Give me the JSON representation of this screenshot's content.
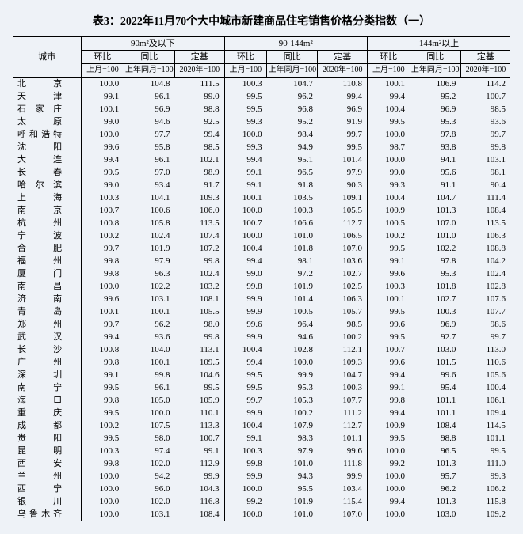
{
  "title": "表3：2022年11月70个大中城市新建商品住宅销售价格分类指数（一）",
  "groups": [
    "90m²及以下",
    "90-144m²",
    "144m²以上"
  ],
  "subcols": [
    "环比",
    "同比",
    "定基"
  ],
  "basecols": [
    "上月=100",
    "上年同月=100",
    "2020年=100"
  ],
  "city_header": "城市",
  "rows": [
    {
      "c": "北京",
      "v": [
        "100.0",
        "104.8",
        "111.5",
        "100.3",
        "104.7",
        "110.8",
        "100.1",
        "106.9",
        "114.2"
      ]
    },
    {
      "c": "天津",
      "v": [
        "99.1",
        "96.1",
        "99.0",
        "99.5",
        "96.2",
        "99.4",
        "99.4",
        "95.2",
        "100.7"
      ]
    },
    {
      "c": "石家庄",
      "v": [
        "100.1",
        "96.9",
        "98.8",
        "99.5",
        "96.8",
        "96.9",
        "100.4",
        "96.9",
        "98.5"
      ]
    },
    {
      "c": "太原",
      "v": [
        "99.0",
        "94.6",
        "92.5",
        "99.3",
        "95.2",
        "91.9",
        "99.5",
        "95.3",
        "93.6"
      ]
    },
    {
      "c": "呼和浩特",
      "v": [
        "100.0",
        "97.7",
        "99.4",
        "100.0",
        "98.4",
        "99.7",
        "100.0",
        "97.8",
        "99.7"
      ]
    },
    {
      "c": "沈阳",
      "v": [
        "99.6",
        "95.8",
        "98.5",
        "99.3",
        "94.9",
        "99.5",
        "98.7",
        "93.8",
        "99.8"
      ]
    },
    {
      "c": "大连",
      "v": [
        "99.4",
        "96.1",
        "102.1",
        "99.4",
        "95.1",
        "101.4",
        "100.0",
        "94.1",
        "103.1"
      ]
    },
    {
      "c": "长春",
      "v": [
        "99.5",
        "97.0",
        "98.9",
        "99.1",
        "96.5",
        "97.9",
        "99.0",
        "95.6",
        "98.1"
      ]
    },
    {
      "c": "哈尔滨",
      "v": [
        "99.0",
        "93.4",
        "91.7",
        "99.1",
        "91.8",
        "90.3",
        "99.3",
        "91.1",
        "90.4"
      ]
    },
    {
      "c": "上海",
      "v": [
        "100.3",
        "104.1",
        "109.3",
        "100.1",
        "103.5",
        "109.1",
        "100.4",
        "104.7",
        "111.4"
      ]
    },
    {
      "c": "南京",
      "v": [
        "100.7",
        "100.6",
        "106.0",
        "100.0",
        "100.3",
        "105.5",
        "100.9",
        "101.3",
        "108.4"
      ]
    },
    {
      "c": "杭州",
      "v": [
        "100.8",
        "105.8",
        "113.5",
        "100.7",
        "106.6",
        "112.7",
        "100.5",
        "107.0",
        "113.5"
      ]
    },
    {
      "c": "宁波",
      "v": [
        "100.2",
        "102.4",
        "107.4",
        "100.0",
        "101.0",
        "106.5",
        "100.2",
        "101.0",
        "106.3"
      ]
    },
    {
      "c": "合肥",
      "v": [
        "99.7",
        "101.9",
        "107.2",
        "100.4",
        "101.8",
        "107.0",
        "99.5",
        "102.2",
        "108.8"
      ]
    },
    {
      "c": "福州",
      "v": [
        "99.8",
        "97.9",
        "99.8",
        "99.4",
        "98.1",
        "103.6",
        "99.1",
        "97.8",
        "104.2"
      ]
    },
    {
      "c": "厦门",
      "v": [
        "99.8",
        "96.3",
        "102.4",
        "99.0",
        "97.2",
        "102.7",
        "99.6",
        "95.3",
        "102.4"
      ]
    },
    {
      "c": "南昌",
      "v": [
        "100.0",
        "102.2",
        "103.2",
        "99.8",
        "101.9",
        "102.5",
        "100.3",
        "101.8",
        "102.8"
      ]
    },
    {
      "c": "济南",
      "v": [
        "99.6",
        "103.1",
        "108.1",
        "99.9",
        "101.4",
        "106.3",
        "100.1",
        "102.7",
        "107.6"
      ]
    },
    {
      "c": "青岛",
      "v": [
        "100.1",
        "100.1",
        "105.5",
        "99.9",
        "100.5",
        "105.7",
        "99.5",
        "100.3",
        "107.7"
      ]
    },
    {
      "c": "郑州",
      "v": [
        "99.7",
        "96.2",
        "98.0",
        "99.6",
        "96.4",
        "98.5",
        "99.6",
        "96.9",
        "98.6"
      ]
    },
    {
      "c": "武汉",
      "v": [
        "99.4",
        "93.6",
        "99.8",
        "99.9",
        "94.6",
        "100.2",
        "99.5",
        "92.7",
        "99.7"
      ]
    },
    {
      "c": "长沙",
      "v": [
        "100.8",
        "104.0",
        "113.1",
        "100.4",
        "102.8",
        "112.1",
        "100.7",
        "103.0",
        "113.0"
      ]
    },
    {
      "c": "广州",
      "v": [
        "99.8",
        "100.1",
        "109.5",
        "99.4",
        "100.0",
        "109.3",
        "99.6",
        "101.5",
        "110.6"
      ]
    },
    {
      "c": "深圳",
      "v": [
        "99.1",
        "99.8",
        "104.6",
        "99.5",
        "99.9",
        "104.7",
        "99.4",
        "99.6",
        "105.6"
      ]
    },
    {
      "c": "南宁",
      "v": [
        "99.5",
        "96.1",
        "99.5",
        "99.5",
        "95.3",
        "100.3",
        "99.1",
        "95.4",
        "100.4"
      ]
    },
    {
      "c": "海口",
      "v": [
        "99.8",
        "105.0",
        "105.9",
        "99.7",
        "105.3",
        "107.7",
        "99.8",
        "101.1",
        "106.1"
      ]
    },
    {
      "c": "重庆",
      "v": [
        "99.5",
        "100.0",
        "110.1",
        "99.9",
        "100.2",
        "111.2",
        "99.4",
        "101.1",
        "109.4"
      ]
    },
    {
      "c": "成都",
      "v": [
        "100.2",
        "107.5",
        "113.3",
        "100.4",
        "107.9",
        "112.7",
        "100.9",
        "108.4",
        "114.5"
      ]
    },
    {
      "c": "贵阳",
      "v": [
        "99.5",
        "98.0",
        "100.7",
        "99.1",
        "98.3",
        "101.1",
        "99.5",
        "98.8",
        "101.1"
      ]
    },
    {
      "c": "昆明",
      "v": [
        "100.3",
        "97.4",
        "99.1",
        "100.3",
        "97.9",
        "99.6",
        "100.0",
        "96.5",
        "99.5"
      ]
    },
    {
      "c": "西安",
      "v": [
        "99.8",
        "102.0",
        "112.9",
        "99.8",
        "101.0",
        "111.8",
        "99.2",
        "101.3",
        "111.0"
      ]
    },
    {
      "c": "兰州",
      "v": [
        "100.0",
        "94.2",
        "99.9",
        "99.9",
        "94.3",
        "99.9",
        "100.0",
        "95.7",
        "99.3"
      ]
    },
    {
      "c": "西宁",
      "v": [
        "100.0",
        "96.0",
        "104.3",
        "100.0",
        "95.5",
        "103.4",
        "100.0",
        "96.2",
        "106.2"
      ]
    },
    {
      "c": "银川",
      "v": [
        "100.0",
        "102.0",
        "116.8",
        "99.2",
        "101.9",
        "115.4",
        "99.4",
        "101.3",
        "115.8"
      ]
    },
    {
      "c": "乌鲁木齐",
      "v": [
        "100.0",
        "103.1",
        "108.4",
        "100.0",
        "101.0",
        "107.0",
        "100.0",
        "103.0",
        "109.2"
      ]
    }
  ]
}
